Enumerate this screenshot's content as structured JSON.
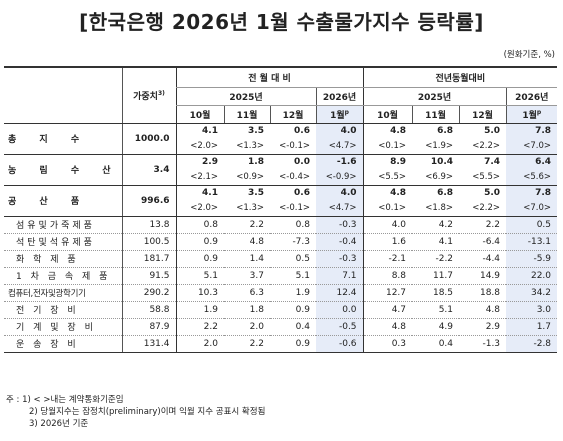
{
  "title": "[한국은행 2026년 1월 수출물가지수 등락률]",
  "unit": "(원화기준, %)",
  "header": {
    "weight": "가중치",
    "weight_sup": "3)",
    "mom": "전 월 대 비",
    "yoy": "전년동월대비",
    "year2025": "2025년",
    "year2026": "2026년",
    "months": [
      "10월",
      "11월",
      "12월",
      "1월"
    ],
    "p_mark": "p"
  },
  "rows": [
    {
      "label": "총 지 수",
      "type": "main",
      "weight": "1000.0",
      "mom": [
        "4.1",
        "3.5",
        "0.6",
        "4.0"
      ],
      "yoy": [
        "4.8",
        "6.8",
        "5.0",
        "7.8"
      ],
      "mom_paren": [
        "<2.0>",
        "<1.3>",
        "<-0.1>",
        "<4.7>"
      ],
      "yoy_paren": [
        "<0.1>",
        "<1.9>",
        "<2.2>",
        "<7.0>"
      ]
    },
    {
      "label": "농 림 수 산 품",
      "type": "main",
      "weight": "3.4",
      "mom": [
        "2.9",
        "1.8",
        "0.0",
        "-1.6"
      ],
      "yoy": [
        "8.9",
        "10.4",
        "7.4",
        "6.4"
      ],
      "mom_paren": [
        "<2.1>",
        "<0.9>",
        "<-0.4>",
        "<-0.9>"
      ],
      "yoy_paren": [
        "<5.5>",
        "<6.9>",
        "<5.5>",
        "<5.6>"
      ]
    },
    {
      "label": "공 산 품",
      "type": "main",
      "weight": "996.6",
      "mom": [
        "4.1",
        "3.5",
        "0.6",
        "4.0"
      ],
      "yoy": [
        "4.8",
        "6.8",
        "5.0",
        "7.8"
      ],
      "mom_paren": [
        "<2.0>",
        "<1.3>",
        "<-0.1>",
        "<4.7>"
      ],
      "yoy_paren": [
        "<0.1>",
        "<1.8>",
        "<2.2>",
        "<7.0>"
      ]
    },
    {
      "label": "섬유및가죽제품",
      "type": "sub",
      "weight": "13.8",
      "mom": [
        "0.8",
        "2.2",
        "0.8",
        "-0.3"
      ],
      "yoy": [
        "4.0",
        "4.2",
        "2.2",
        "0.5"
      ]
    },
    {
      "label": "석탄및석유제품",
      "type": "sub",
      "weight": "100.5",
      "mom": [
        "0.9",
        "4.8",
        "-7.3",
        "-0.4"
      ],
      "yoy": [
        "1.6",
        "4.1",
        "-6.4",
        "-13.1"
      ]
    },
    {
      "label": "화 학 제 품",
      "type": "sub",
      "weight": "181.7",
      "mom": [
        "0.9",
        "1.4",
        "0.5",
        "-0.3"
      ],
      "yoy": [
        "-2.1",
        "-2.2",
        "-4.4",
        "-5.9"
      ]
    },
    {
      "label": "1 차 금 속 제 품",
      "type": "sub",
      "weight": "91.5",
      "mom": [
        "5.1",
        "3.7",
        "5.1",
        "7.1"
      ],
      "yoy": [
        "8.8",
        "11.7",
        "14.9",
        "22.0"
      ]
    },
    {
      "label": "컴퓨터,전자및광학기기",
      "type": "sub-narrow",
      "weight": "290.2",
      "mom": [
        "10.3",
        "6.3",
        "1.9",
        "12.4"
      ],
      "yoy": [
        "12.7",
        "18.5",
        "18.8",
        "34.2"
      ]
    },
    {
      "label": "전 기 장 비",
      "type": "sub",
      "weight": "58.8",
      "mom": [
        "1.9",
        "1.8",
        "0.9",
        "0.0"
      ],
      "yoy": [
        "4.7",
        "5.1",
        "4.8",
        "3.0"
      ]
    },
    {
      "label": "기 계 및 장 비",
      "type": "sub",
      "weight": "87.9",
      "mom": [
        "2.2",
        "2.0",
        "0.4",
        "-0.5"
      ],
      "yoy": [
        "4.8",
        "4.9",
        "2.9",
        "1.7"
      ]
    },
    {
      "label": "운 송 장 비",
      "type": "sub",
      "weight": "131.4",
      "mom": [
        "2.0",
        "2.2",
        "0.9",
        "-0.6"
      ],
      "yoy": [
        "0.3",
        "0.4",
        "-1.3",
        "-2.8"
      ]
    }
  ],
  "notes": {
    "prefix": "주 :",
    "items": [
      "1) < >내는 계약통화기준임",
      "2) 당월지수는 잠정치(preliminary)이며 익월 지수 공표시 확정됨",
      "3) 2026년 기준"
    ]
  }
}
